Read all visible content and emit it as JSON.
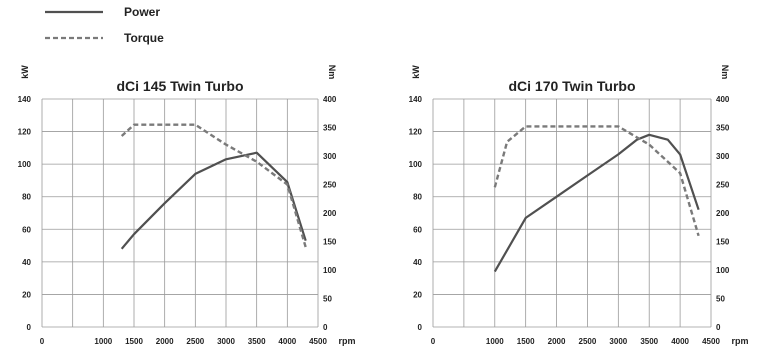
{
  "legend": [
    {
      "label": "Power",
      "style": "solid"
    },
    {
      "label": "Torque",
      "style": "dashed"
    }
  ],
  "colors": {
    "power": "#505050",
    "torque": "#7a7a7a",
    "grid": "#9a9a9a",
    "text": "#222222"
  },
  "chart_data": [
    {
      "type": "line",
      "title": "dCi 145 Twin Turbo",
      "xlabel": "rpm",
      "ylabel_left": "kW",
      "ylabel_right": "Nm",
      "xlim": [
        0,
        4500
      ],
      "ylim_left": [
        0,
        140
      ],
      "ylim_right": [
        0,
        400
      ],
      "x_ticks": [
        0,
        1000,
        1500,
        2000,
        2500,
        3000,
        3500,
        4000,
        4500
      ],
      "y_left_ticks": [
        0,
        20,
        40,
        60,
        80,
        100,
        120,
        140
      ],
      "y_right_ticks": [
        0,
        50,
        100,
        150,
        200,
        250,
        300,
        350,
        400
      ],
      "grid": true,
      "series": [
        {
          "name": "Power",
          "axis": "left",
          "style": "solid",
          "x": [
            1300,
            1500,
            2000,
            2500,
            3000,
            3500,
            4000,
            4300
          ],
          "y": [
            48,
            57,
            76,
            94,
            103,
            107,
            89,
            53
          ]
        },
        {
          "name": "Torque",
          "axis": "right",
          "style": "dashed",
          "x": [
            1300,
            1500,
            2000,
            2500,
            3000,
            3500,
            4000,
            4300
          ],
          "y": [
            335,
            355,
            355,
            355,
            320,
            290,
            250,
            140
          ]
        }
      ]
    },
    {
      "type": "line",
      "title": "dCi 170 Twin Turbo",
      "xlabel": "rpm",
      "ylabel_left": "kW",
      "ylabel_right": "Nm",
      "xlim": [
        0,
        4500
      ],
      "ylim_left": [
        0,
        140
      ],
      "ylim_right": [
        0,
        400
      ],
      "x_ticks": [
        0,
        1000,
        1500,
        2000,
        2500,
        3000,
        3500,
        4000,
        4500
      ],
      "y_left_ticks": [
        0,
        20,
        40,
        60,
        80,
        100,
        120,
        140
      ],
      "y_right_ticks": [
        0,
        50,
        100,
        150,
        200,
        250,
        300,
        350,
        400
      ],
      "grid": true,
      "series": [
        {
          "name": "Power",
          "axis": "left",
          "style": "solid",
          "x": [
            1000,
            1500,
            2000,
            2500,
            3000,
            3300,
            3500,
            3800,
            4000,
            4300
          ],
          "y": [
            34,
            67,
            80,
            93,
            106,
            115,
            118,
            115,
            106,
            72
          ]
        },
        {
          "name": "Torque",
          "axis": "right",
          "style": "dashed",
          "x": [
            1000,
            1200,
            1500,
            2000,
            2500,
            3000,
            3500,
            4000,
            4300
          ],
          "y": [
            245,
            325,
            352,
            352,
            352,
            352,
            320,
            270,
            160
          ]
        }
      ]
    }
  ]
}
